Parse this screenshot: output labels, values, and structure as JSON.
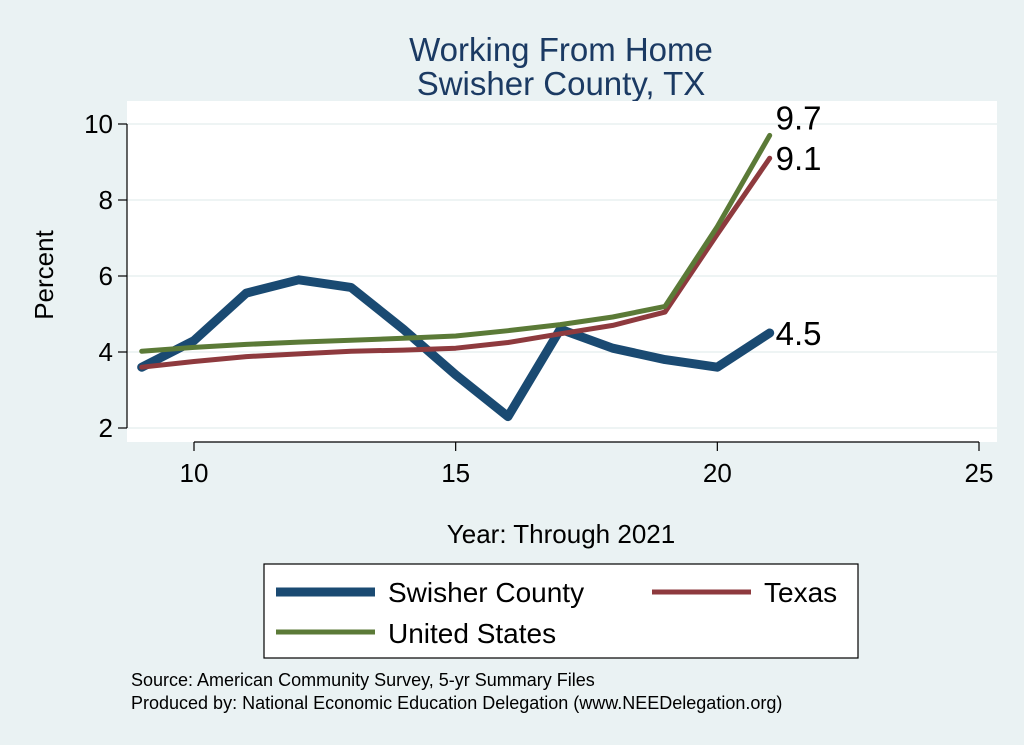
{
  "chart_data": {
    "type": "line",
    "title": "Working From Home",
    "subtitle": "Swisher County, TX",
    "xlabel": "Year: Through 2021",
    "ylabel": "Percent",
    "xlim": [
      9,
      25
    ],
    "ylim": [
      1.8,
      10.4
    ],
    "x_ticks": [
      10,
      15,
      20,
      25
    ],
    "y_ticks": [
      2,
      4,
      6,
      8,
      10
    ],
    "grid": true,
    "legend": "bottom",
    "x": [
      9,
      10,
      11,
      12,
      13,
      14,
      15,
      16,
      17,
      18,
      19,
      20,
      21
    ],
    "series": [
      {
        "name": "Swisher County",
        "color": "#1a4a72",
        "values": [
          3.6,
          4.3,
          5.55,
          5.9,
          5.7,
          4.6,
          3.4,
          2.3,
          4.6,
          4.1,
          3.8,
          3.6,
          4.5
        ],
        "end_label": "4.5"
      },
      {
        "name": "Texas",
        "color": "#8e3a3e",
        "values": [
          3.6,
          3.75,
          3.88,
          3.95,
          4.02,
          4.05,
          4.1,
          4.25,
          4.48,
          4.7,
          5.05,
          7.1,
          9.1
        ],
        "end_label": "9.1"
      },
      {
        "name": "United States",
        "color": "#5b7a37",
        "values": [
          4.02,
          4.12,
          4.2,
          4.26,
          4.31,
          4.36,
          4.42,
          4.56,
          4.72,
          4.92,
          5.2,
          7.3,
          9.7
        ],
        "end_label": "9.7"
      }
    ]
  },
  "notes": [
    "Source: American Community Survey, 5-yr Summary Files",
    "Produced by: National Economic Education Delegation (www.NEEDelegation.org)"
  ]
}
